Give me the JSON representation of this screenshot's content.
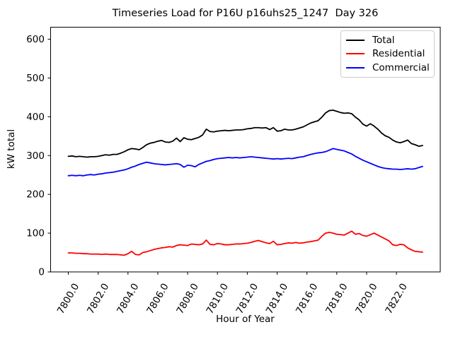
{
  "chart_data": {
    "type": "line",
    "title": "Timeseries Load for P16U p16uhs25_1247  Day 326",
    "xlabel": "Hour of Year",
    "ylabel": "kW total",
    "xlim": [
      7798.8125,
      7824.9375
    ],
    "ylim": [
      0,
      631
    ],
    "grid": false,
    "legend": {
      "position": "upper right",
      "entries": [
        "Total",
        "Residential",
        "Commercial"
      ]
    },
    "xticks": {
      "values": [
        7800,
        7802,
        7804,
        7806,
        7808,
        7810,
        7812,
        7814,
        7816,
        7818,
        7820,
        7822
      ],
      "labels": [
        "7800.0",
        "7802.0",
        "7804.0",
        "7806.0",
        "7808.0",
        "7810.0",
        "7812.0",
        "7814.0",
        "7816.0",
        "7818.0",
        "7820.0",
        "7822.0"
      ],
      "rotation": 60
    },
    "yticks": {
      "values": [
        0,
        100,
        200,
        300,
        400,
        500,
        600
      ],
      "labels": [
        "0",
        "100",
        "200",
        "300",
        "400",
        "500",
        "600"
      ]
    },
    "x_start": 7800.0,
    "x_step": 0.25,
    "x": [
      7800.0,
      7800.25,
      7800.5,
      7800.75,
      7801.0,
      7801.25,
      7801.5,
      7801.75,
      7802.0,
      7802.25,
      7802.5,
      7802.75,
      7803.0,
      7803.25,
      7803.5,
      7803.75,
      7804.0,
      7804.25,
      7804.5,
      7804.75,
      7805.0,
      7805.25,
      7805.5,
      7805.75,
      7806.0,
      7806.25,
      7806.5,
      7806.75,
      7807.0,
      7807.25,
      7807.5,
      7807.75,
      7808.0,
      7808.25,
      7808.5,
      7808.75,
      7809.0,
      7809.25,
      7809.5,
      7809.75,
      7810.0,
      7810.25,
      7810.5,
      7810.75,
      7811.0,
      7811.25,
      7811.5,
      7811.75,
      7812.0,
      7812.25,
      7812.5,
      7812.75,
      7813.0,
      7813.25,
      7813.5,
      7813.75,
      7814.0,
      7814.25,
      7814.5,
      7814.75,
      7815.0,
      7815.25,
      7815.5,
      7815.75,
      7816.0,
      7816.25,
      7816.5,
      7816.75,
      7817.0,
      7817.25,
      7817.5,
      7817.75,
      7818.0,
      7818.25,
      7818.5,
      7818.75,
      7819.0,
      7819.25,
      7819.5,
      7819.75,
      7820.0,
      7820.25,
      7820.5,
      7820.75,
      7821.0,
      7821.25,
      7821.5,
      7821.75,
      7822.0,
      7822.25,
      7822.5,
      7822.75,
      7823.0,
      7823.25,
      7823.5,
      7823.75
    ],
    "series": [
      {
        "name": "Total",
        "color": "#000000",
        "values": [
          298,
          299,
          297,
          298,
          297,
          296,
          297,
          297,
          298,
          300,
          302,
          301,
          303,
          303,
          306,
          310,
          315,
          318,
          317,
          315,
          321,
          328,
          332,
          334,
          337,
          339,
          335,
          334,
          337,
          345,
          336,
          346,
          342,
          341,
          344,
          347,
          353,
          368,
          362,
          361,
          363,
          364,
          365,
          364,
          365,
          366,
          366,
          367,
          369,
          370,
          372,
          372,
          371,
          372,
          367,
          372,
          363,
          364,
          368,
          366,
          366,
          368,
          371,
          374,
          379,
          384,
          387,
          390,
          399,
          410,
          416,
          417,
          414,
          411,
          409,
          410,
          408,
          399,
          392,
          381,
          376,
          382,
          376,
          368,
          358,
          351,
          347,
          340,
          335,
          333,
          336,
          340,
          331,
          328,
          324,
          326
        ]
      },
      {
        "name": "Residential",
        "color": "#ff0000",
        "values": [
          49,
          49,
          48,
          48,
          47,
          47,
          46,
          46,
          46,
          45,
          46,
          45,
          45,
          45,
          44,
          43,
          47,
          53,
          45,
          44,
          50,
          52,
          55,
          58,
          60,
          62,
          63,
          65,
          64,
          68,
          70,
          69,
          68,
          72,
          71,
          70,
          72,
          82,
          71,
          70,
          73,
          72,
          70,
          70,
          71,
          72,
          72,
          73,
          74,
          76,
          79,
          81,
          78,
          75,
          73,
          79,
          70,
          71,
          73,
          75,
          74,
          76,
          74,
          75,
          77,
          78,
          80,
          82,
          92,
          100,
          102,
          100,
          97,
          96,
          95,
          100,
          105,
          97,
          99,
          94,
          92,
          96,
          100,
          95,
          90,
          85,
          80,
          70,
          68,
          71,
          70,
          62,
          57,
          53,
          52,
          51
        ]
      },
      {
        "name": "Commercial",
        "color": "#0000ff",
        "values": [
          248,
          249,
          248,
          249,
          248,
          250,
          251,
          250,
          252,
          253,
          255,
          256,
          257,
          259,
          261,
          263,
          266,
          270,
          273,
          277,
          280,
          283,
          281,
          279,
          278,
          277,
          276,
          277,
          278,
          279,
          277,
          270,
          275,
          274,
          271,
          277,
          281,
          285,
          287,
          290,
          292,
          293,
          294,
          295,
          294,
          295,
          294,
          295,
          296,
          297,
          296,
          295,
          294,
          293,
          292,
          291,
          292,
          291,
          292,
          293,
          292,
          294,
          296,
          297,
          300,
          303,
          305,
          307,
          308,
          310,
          314,
          318,
          316,
          314,
          312,
          308,
          304,
          298,
          293,
          288,
          284,
          280,
          276,
          272,
          269,
          267,
          266,
          265,
          265,
          264,
          265,
          266,
          265,
          266,
          269,
          272
        ]
      }
    ]
  }
}
